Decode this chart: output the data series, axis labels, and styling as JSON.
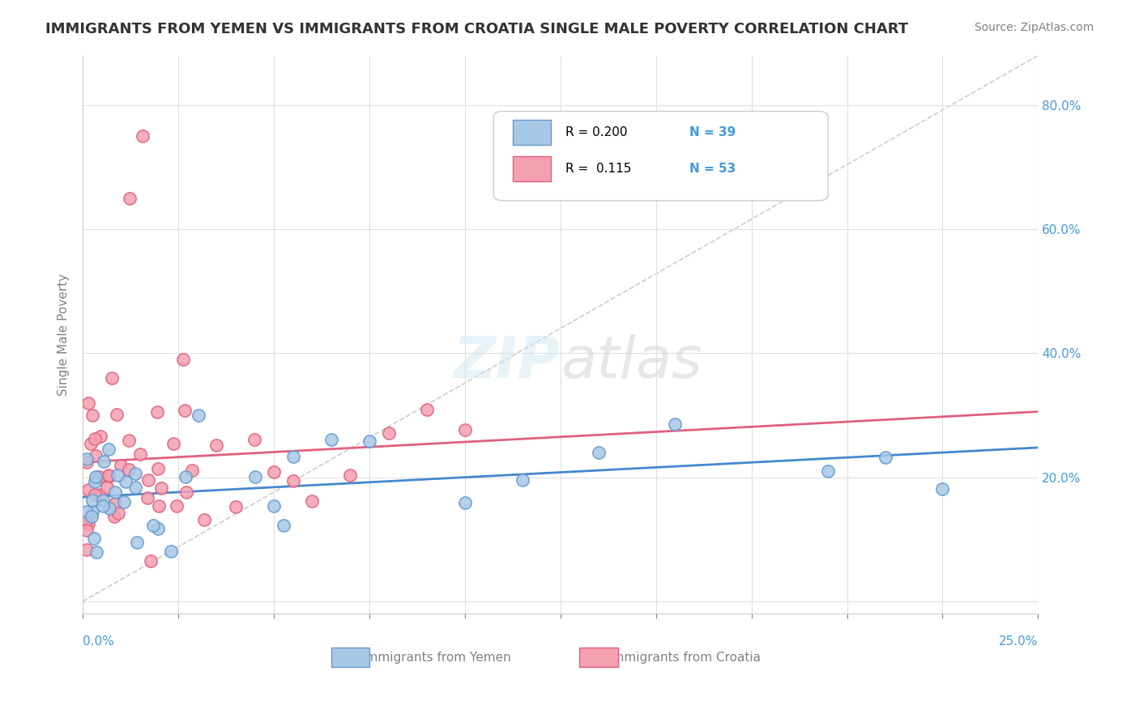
{
  "title": "IMMIGRANTS FROM YEMEN VS IMMIGRANTS FROM CROATIA SINGLE MALE POVERTY CORRELATION CHART",
  "source": "Source: ZipAtlas.com",
  "ylabel": "Single Male Poverty",
  "xmin": 0.0,
  "xmax": 0.25,
  "ymin": -0.02,
  "ymax": 0.88,
  "color_yemen": "#a8c8e8",
  "color_croatia": "#f4a0b0",
  "color_yemen_edge": "#6699cc",
  "color_croatia_edge": "#e06080",
  "color_line_yemen": "#4488cc",
  "color_line_croatia": "#e06080",
  "color_diag": "#cccccc"
}
